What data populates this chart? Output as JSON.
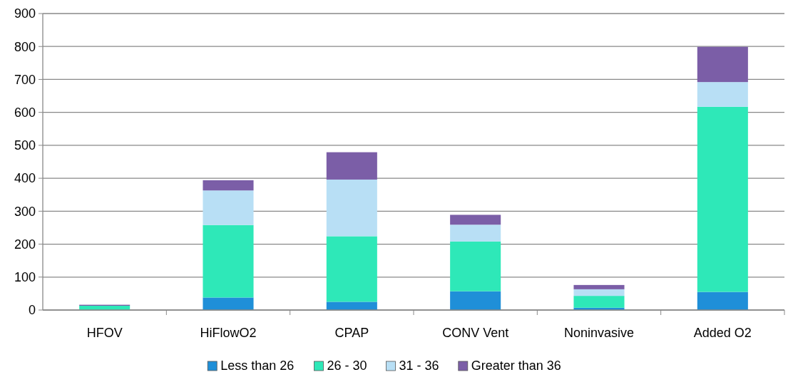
{
  "chart_data": {
    "type": "bar",
    "stacked": true,
    "categories": [
      "HFOV",
      "HiFlowO2",
      "CPAP",
      "CONV Vent",
      "Noninvasive",
      "Added O2"
    ],
    "series": [
      {
        "name": "Less than 26",
        "color": "#1f8fd8",
        "values": [
          null,
          38,
          25,
          57,
          7,
          55
        ]
      },
      {
        "name": "26 - 30",
        "color": "#2ee8b8",
        "values": [
          13,
          220,
          199,
          151,
          36,
          562
        ]
      },
      {
        "name": "31 - 36",
        "color": "#b8dff5",
        "values": [
          0,
          105,
          172,
          51,
          20,
          75
        ]
      },
      {
        "name": "Greater than 36",
        "color": "#7b5ea7",
        "values": [
          3,
          31,
          83,
          30,
          13,
          107
        ]
      }
    ],
    "ylim": [
      0,
      900
    ],
    "yticks": [
      0,
      100,
      200,
      300,
      400,
      500,
      600,
      700,
      800,
      900
    ],
    "grid": "y",
    "legend": "bottom"
  }
}
